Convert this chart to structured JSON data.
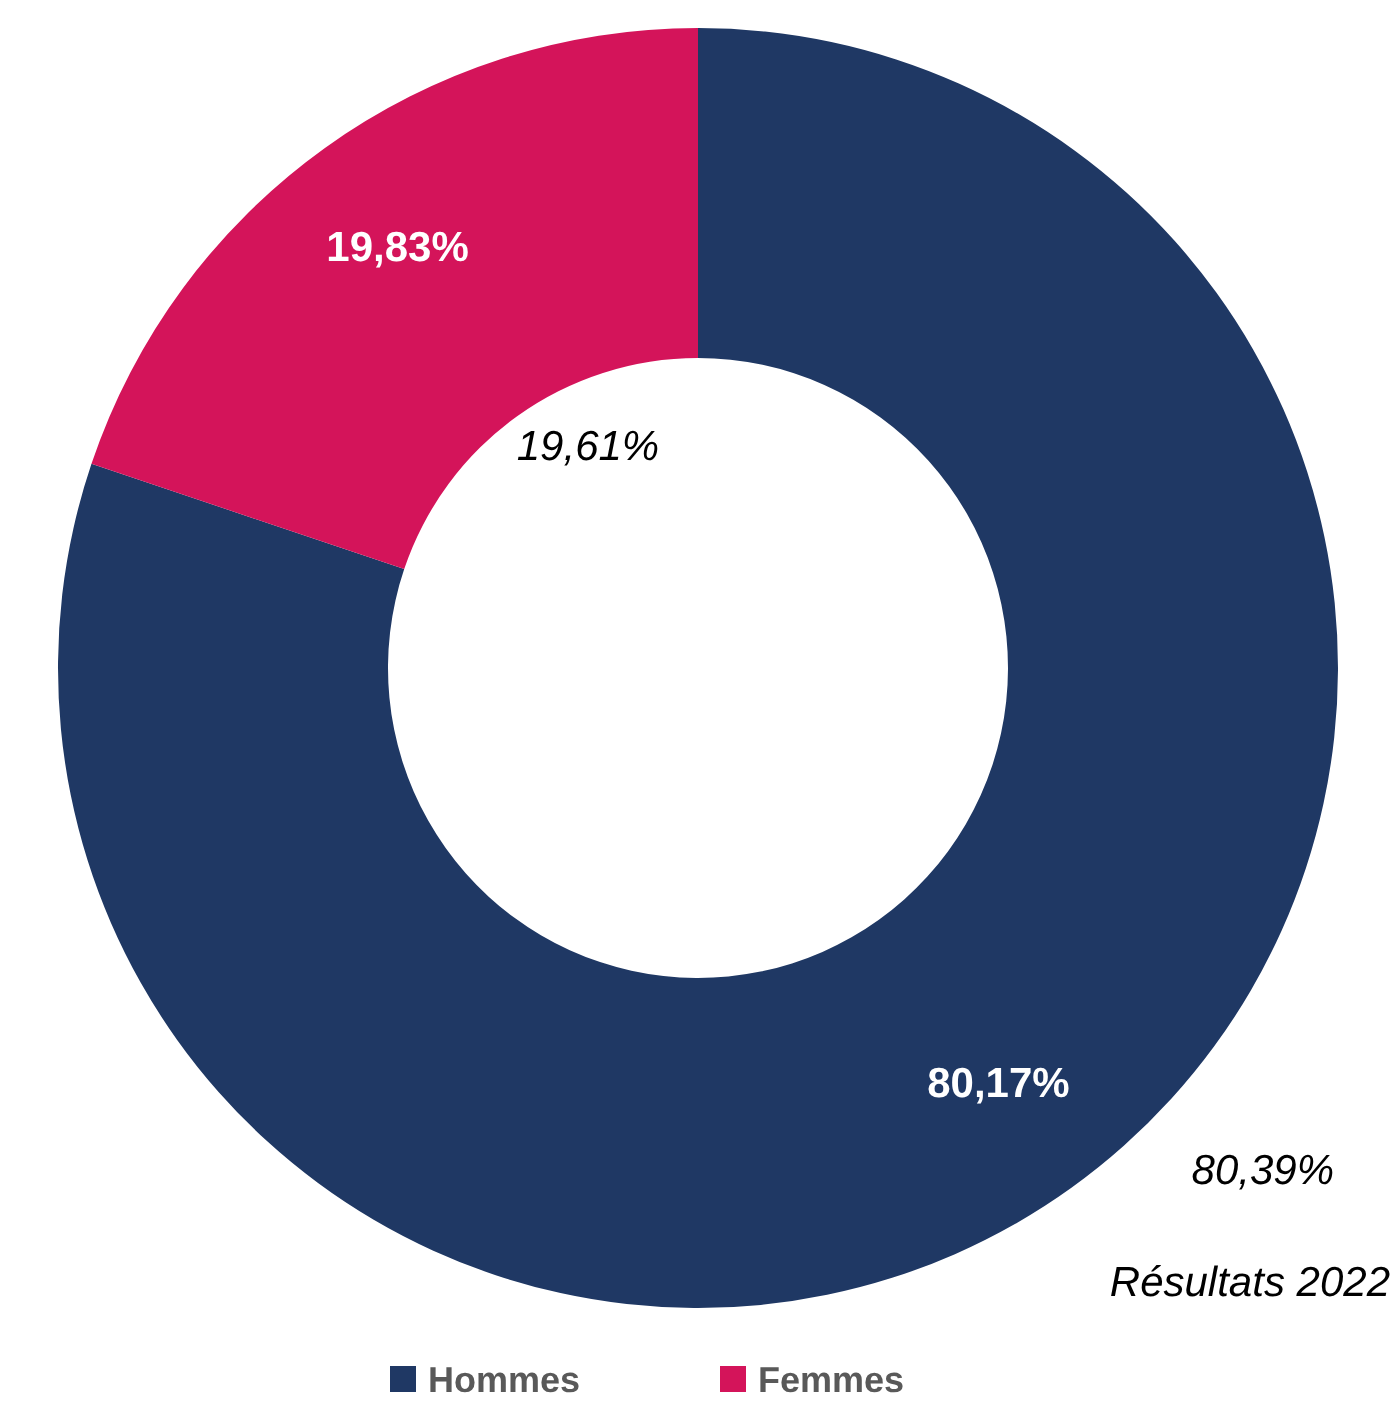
{
  "chart_data": {
    "type": "donut",
    "categories": [
      "Hommes",
      "Femmes"
    ],
    "values": [
      80.17,
      19.83
    ],
    "colors": [
      "#1f3864",
      "#d4145a"
    ],
    "value_labels": [
      "80,17%",
      "19,83%"
    ],
    "legend": "bottom",
    "annotations": [
      "19,61%",
      "80,39%",
      "Résultats 2022"
    ]
  }
}
